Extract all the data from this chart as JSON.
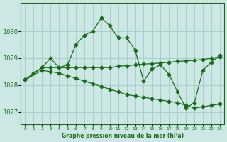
{
  "background_color": "#cde8e4",
  "grid_color": "#a0cccc",
  "line_color": "#1a6b1a",
  "title": "Graphe pression niveau de la mer (hPa)",
  "ylim": [
    1026.55,
    1031.05
  ],
  "xlim": [
    -0.5,
    23.5
  ],
  "yticks": [
    1027,
    1028,
    1029,
    1030
  ],
  "xticks": [
    0,
    1,
    2,
    3,
    4,
    5,
    6,
    7,
    8,
    9,
    10,
    11,
    12,
    13,
    14,
    15,
    16,
    17,
    18,
    19,
    20,
    21,
    22,
    23
  ],
  "series_peak_x": [
    0,
    1,
    2,
    3,
    4,
    5,
    6,
    7,
    8,
    9,
    10,
    11,
    12,
    13,
    14,
    15,
    16,
    17,
    18,
    19,
    20,
    21,
    22,
    23
  ],
  "series_peak_y": [
    1028.2,
    1028.45,
    1028.65,
    1029.0,
    1028.65,
    1028.75,
    1029.5,
    1029.85,
    1030.0,
    1030.5,
    1030.2,
    1029.75,
    1029.75,
    1029.3,
    1028.15,
    1028.6,
    1028.75,
    1028.4,
    1027.75,
    1027.15,
    1027.35,
    1028.55,
    1028.85,
    1029.1
  ],
  "series_mid_x": [
    0,
    2,
    3,
    4,
    5,
    6,
    7,
    8,
    9,
    10,
    11,
    12,
    13,
    14,
    15,
    16,
    17,
    18,
    19,
    20,
    21,
    22,
    23
  ],
  "series_mid_y": [
    1028.2,
    1028.65,
    1028.65,
    1028.65,
    1028.65,
    1028.65,
    1028.65,
    1028.65,
    1028.65,
    1028.65,
    1028.7,
    1028.72,
    1028.75,
    1028.78,
    1028.8,
    1028.82,
    1028.85,
    1028.88,
    1028.9,
    1028.92,
    1028.95,
    1029.0,
    1029.05
  ],
  "series_low_x": [
    0,
    2,
    3,
    4,
    5,
    6,
    7,
    8,
    9,
    10,
    11,
    12,
    13,
    14,
    15,
    16,
    17,
    18,
    19,
    20,
    21,
    22,
    23
  ],
  "series_low_y": [
    1028.2,
    1028.55,
    1028.5,
    1028.45,
    1028.35,
    1028.25,
    1028.15,
    1028.05,
    1027.95,
    1027.85,
    1027.75,
    1027.65,
    1027.6,
    1027.55,
    1027.5,
    1027.45,
    1027.4,
    1027.35,
    1027.25,
    1027.15,
    1027.2,
    1027.25,
    1027.3
  ]
}
